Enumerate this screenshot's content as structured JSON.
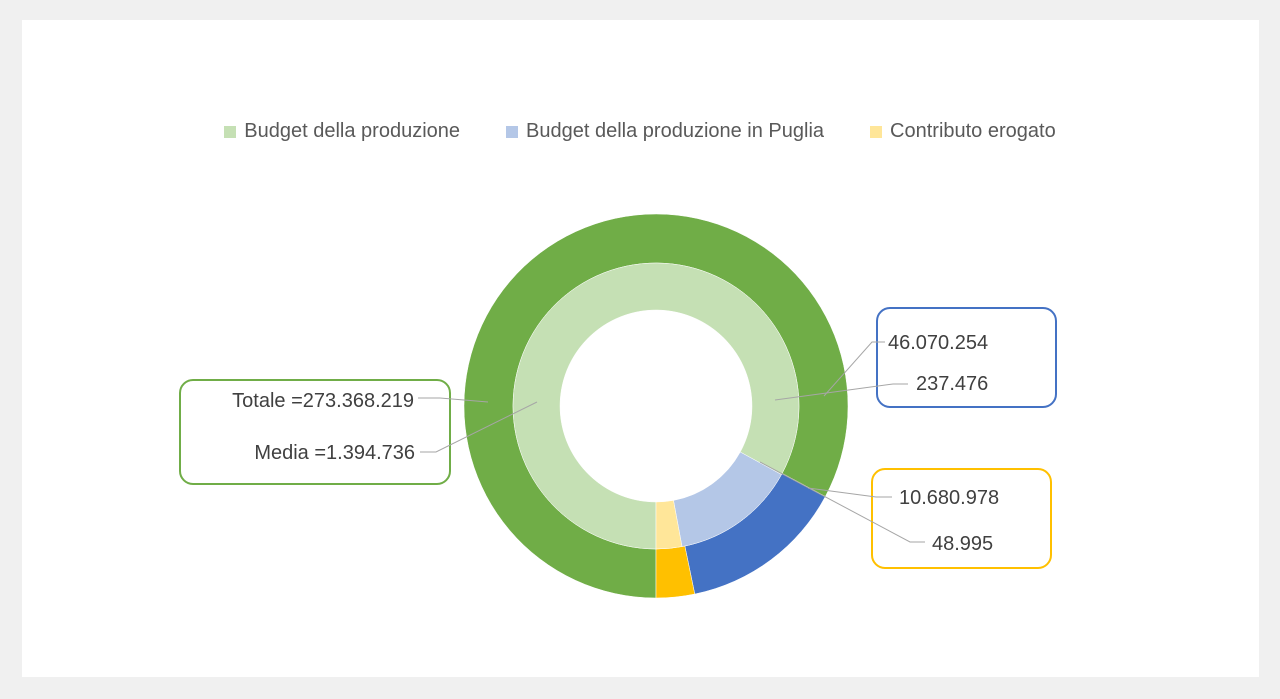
{
  "colors": {
    "outer_green": "#70ad47",
    "inner_green": "#c5e0b4",
    "outer_blue": "#4472c4",
    "inner_blue": "#b4c7e7",
    "outer_gold": "#ffc000",
    "inner_gold": "#ffe699",
    "label_line": "#a6a6a6",
    "box_green": "#70ad47",
    "box_blue": "#4472c4",
    "box_gold": "#ffc000"
  },
  "chart_data": {
    "type": "pie",
    "subtype": "doughnut",
    "legend_position": "top",
    "categories": [
      "Budget della produzione",
      "Budget della produzione in Puglia",
      "Contributo erogato"
    ],
    "series": [
      {
        "ring": "outer",
        "values": [
          273368219,
          46070254,
          10680978
        ]
      },
      {
        "ring": "inner",
        "values": [
          1394736,
          237476,
          48995
        ]
      }
    ]
  },
  "labels": {
    "totale": "Totale =273.368.219",
    "media": "Media =1.394.736",
    "puglia_outer": "46.070.254",
    "puglia_inner": "237.476",
    "contrib_outer": "10.680.978",
    "contrib_inner": "48.995"
  }
}
